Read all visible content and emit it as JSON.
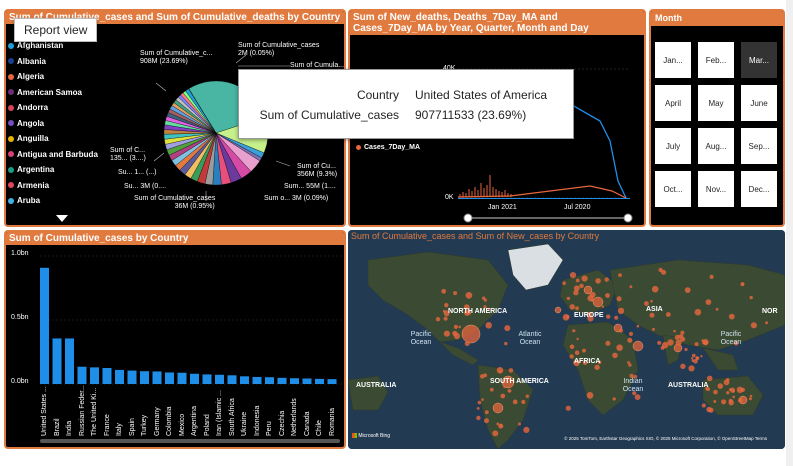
{
  "report_tip": "Report view",
  "pie_panel": {
    "title": "Sum of Cumulative_cases and Sum of Cumulative_deaths by Country",
    "legend": [
      {
        "name": "Afghanistan",
        "color": "#1f9ed8"
      },
      {
        "name": "Albania",
        "color": "#1a3f8f"
      },
      {
        "name": "Algeria",
        "color": "#e8663d"
      },
      {
        "name": "American Samoa",
        "color": "#6b2d7b"
      },
      {
        "name": "Andorra",
        "color": "#d64550"
      },
      {
        "name": "Angola",
        "color": "#744ec2"
      },
      {
        "name": "Anguilla",
        "color": "#e6b400"
      },
      {
        "name": "Antigua and Barbuda",
        "color": "#d9407a"
      },
      {
        "name": "Argentina",
        "color": "#1a9c8a"
      },
      {
        "name": "Armenia",
        "color": "#e0475d"
      },
      {
        "name": "Aruba",
        "color": "#3cb4e5"
      }
    ],
    "labels": {
      "top_left_1": "Sum of Cumulative_c...",
      "top_left_2": "908M (23.69%)",
      "top_right_1": "Sum of Cumulative_cases",
      "top_right_2": "2M (0.05%)",
      "right_top": "Sum of Cumula...",
      "mid_left_1": "Sum of C...",
      "mid_left_2": "135... (3....)",
      "mid_left_3": "Su... 1... (...)",
      "mid_left_4": "Su... 3M (0....",
      "bottom_1": "Sum of Cumulative_cases",
      "bottom_2": "36M (0.95%)",
      "right_1": "Sum of Cu...",
      "right_2": "356M (9.3%)",
      "right_3": "Sum... 55M (1....",
      "right_4": "Sum o... 3M (0.09%)"
    }
  },
  "line_panel": {
    "title": "Sum of New_deaths, Deaths_7Day_MA and Cases_7Day_MA by Year, Quarter, Month and Day",
    "legend_label": "Cases_7Day_MA",
    "legend_color": "#e8663d",
    "ytick_top": "40K",
    "ytick_bottom": "0K",
    "x_ticks": [
      "Jan 2021",
      "Jul 2020"
    ],
    "series_blue_color": "#1f8ee8",
    "series_orange_color": "#e8663d"
  },
  "month_panel": {
    "title": "Month",
    "months": [
      "Jan...",
      "Feb...",
      "Mar...",
      "April",
      "May",
      "June",
      "July",
      "Aug...",
      "Sep...",
      "Oct...",
      "Nov...",
      "Dec..."
    ],
    "selected_index": 2
  },
  "tooltip": {
    "k1": "Country",
    "v1": "United States of America",
    "k2": "Sum of Cumulative_cases",
    "v2": "907711533 (23.69%)"
  },
  "bar_panel": {
    "title": "Sum of Cumulative_cases by Country",
    "bar_color": "#1f8ee8",
    "ytick_top": "1.0bn",
    "ytick_mid": "0.5bn",
    "ytick_bottom": "0.0bn",
    "chart_data": {
      "type": "bar",
      "title": "Sum of Cumulative_cases by Country",
      "categories": [
        "United States ...",
        "Brazil",
        "India",
        "Russian Feder...",
        "The United Ki...",
        "France",
        "Italy",
        "Spain",
        "Turkey",
        "Germany",
        "Colombia",
        "Mexico",
        "Argentina",
        "Poland",
        "Iran (Islamic ...",
        "South Africa",
        "Ukraine",
        "Indonesia",
        "Peru",
        "Czechia",
        "Netherlands",
        "Canada",
        "Chile",
        "Romania"
      ],
      "values": [
        907711533,
        356000000,
        356000000,
        135000000,
        130000000,
        125000000,
        110000000,
        105000000,
        100000000,
        98000000,
        90000000,
        88000000,
        80000000,
        75000000,
        72000000,
        68000000,
        60000000,
        55000000,
        53000000,
        48000000,
        45000000,
        43000000,
        40000000,
        38000000
      ],
      "ylim": [
        0,
        1000000000
      ]
    }
  },
  "map_panel": {
    "title": "Sum of Cumulative_cases and Sum of New_cases by Country",
    "labels": {
      "north_america": "NORTH AMERICA",
      "europe": "EUROPE",
      "asia": "ASIA",
      "nor": "NOR",
      "pacific_ocean_1": "Pacific Ocean",
      "atlantic_ocean": "Atlantic Ocean",
      "pacific_ocean_2": "Pacific Ocean",
      "africa": "AFRICA",
      "south_america": "SOUTH AMERICA",
      "australia_1": "AUSTRALIA",
      "indian_ocean": "Indian Ocean",
      "australia_2": "AUSTRALIA",
      "brand": "Microsoft Bing",
      "attribution": "© 2025 TomTom, Earthstar Geographics SIO, © 2025 Microsoft Corporation, © OpenStreetMap  Terms"
    }
  }
}
